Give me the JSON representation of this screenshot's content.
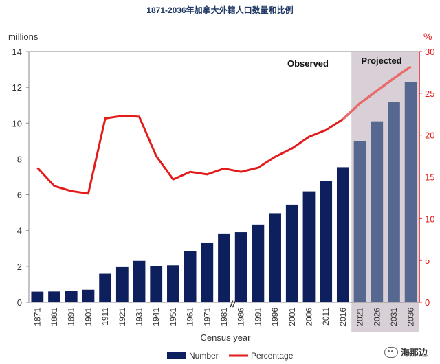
{
  "title": "1871-2036年加拿大外籍人口数量和比例",
  "watermark": "海那边",
  "chart_data": {
    "type": "bar",
    "categories": [
      "1871",
      "1881",
      "1891",
      "1901",
      "1911",
      "1921",
      "1931",
      "1941",
      "1951",
      "1961",
      "1971",
      "1981",
      "1986",
      "1991",
      "1996",
      "2001",
      "2006",
      "2011",
      "2016",
      "2021",
      "2026",
      "2031",
      "2036"
    ],
    "series": [
      {
        "name": "Number",
        "type": "bar",
        "axis": "left",
        "values": [
          0.59,
          0.6,
          0.64,
          0.7,
          1.59,
          1.96,
          2.31,
          2.02,
          2.06,
          2.84,
          3.3,
          3.84,
          3.91,
          4.34,
          4.97,
          5.45,
          6.19,
          6.78,
          7.54,
          9.0,
          10.1,
          11.2,
          12.3
        ]
      },
      {
        "name": "Percentage",
        "type": "line",
        "axis": "right",
        "values": [
          16.1,
          13.9,
          13.3,
          13.0,
          22.0,
          22.3,
          22.2,
          17.5,
          14.7,
          15.6,
          15.3,
          16.0,
          15.6,
          16.1,
          17.4,
          18.4,
          19.8,
          20.6,
          21.9,
          23.8,
          25.3,
          26.8,
          28.2
        ]
      }
    ],
    "xlabel": "Census year",
    "ylabel": "millions",
    "y2label": "%",
    "ylim": [
      0,
      14
    ],
    "yticks": [
      0,
      2,
      4,
      6,
      8,
      10,
      12,
      14
    ],
    "y2lim": [
      0,
      30
    ],
    "y2ticks": [
      0,
      5,
      10,
      15,
      20,
      25,
      30
    ],
    "annotations": {
      "observed": "Observed",
      "projected": "Projected",
      "break_mark": "//"
    },
    "projected_from": "2021",
    "legend": {
      "placement": "bottom",
      "items": [
        "Number",
        "Percentage"
      ]
    },
    "colors": {
      "bar_observed": "#0d1f5c",
      "bar_projected": "#56688f",
      "line": "#e31b1b",
      "line_projected": "#e86a6a",
      "projected_shade": "#d8d0d6",
      "right_axis": "#e31b1b"
    },
    "grid": false
  }
}
